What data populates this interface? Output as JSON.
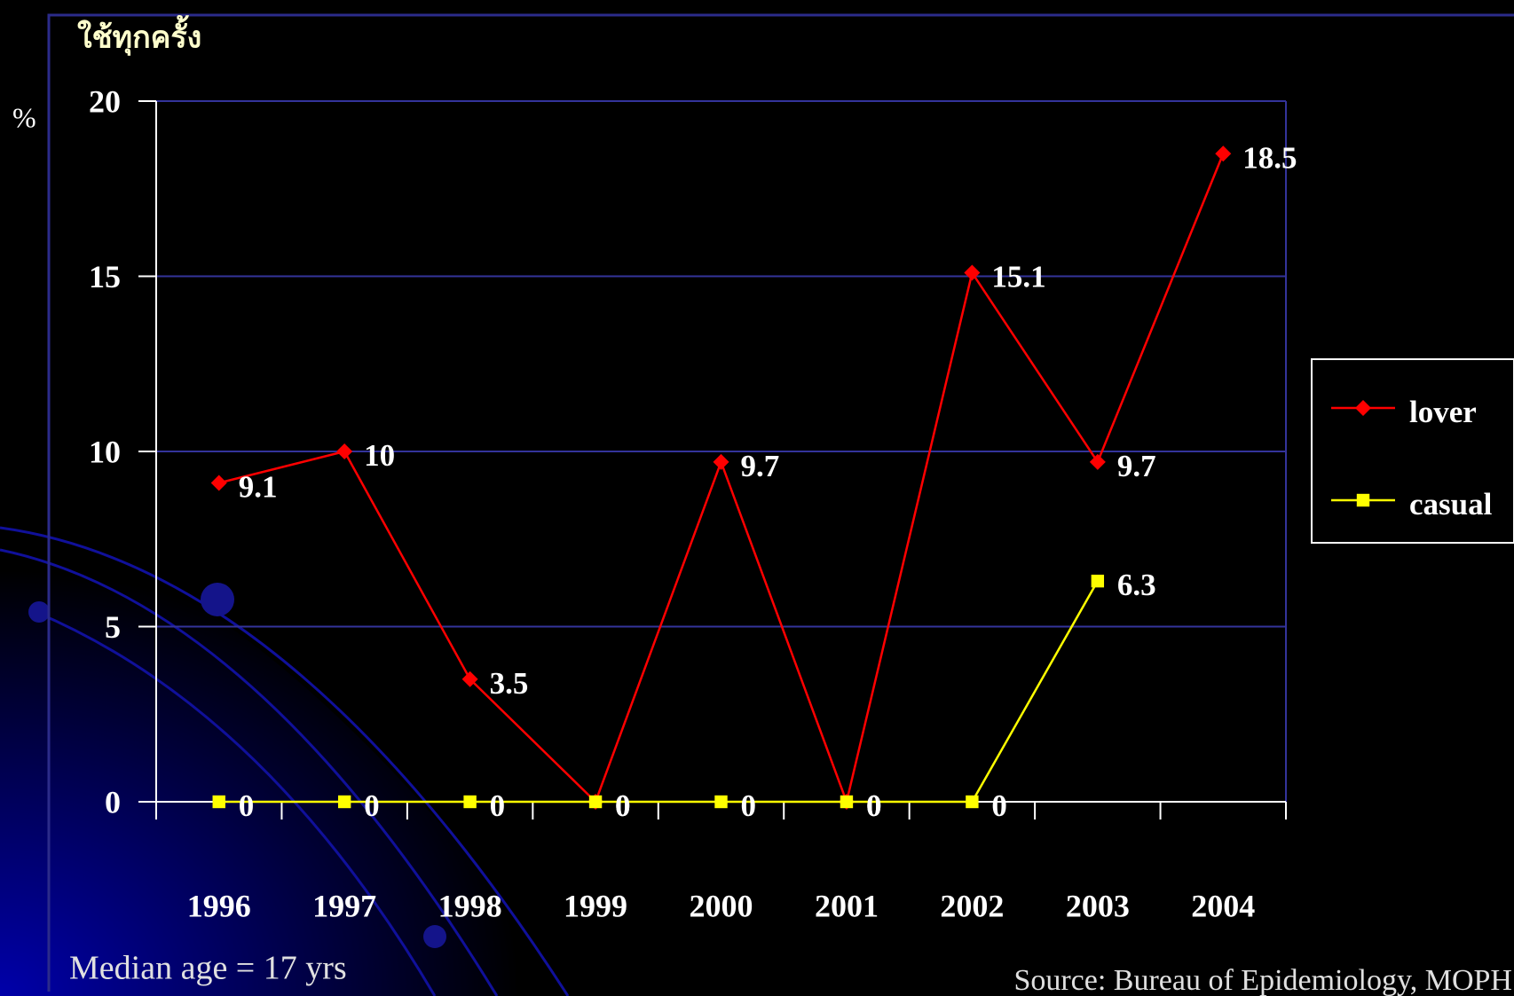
{
  "chart_data": {
    "type": "line",
    "title": "ใช้ทุกครั้ง",
    "y_label": "%",
    "categories": [
      "1996",
      "1997",
      "1998",
      "1999",
      "2000",
      "2001",
      "2002",
      "2003",
      "2004"
    ],
    "series": [
      {
        "name": "lover",
        "color": "#ff0000",
        "marker": "diamond",
        "values": [
          9.1,
          10,
          3.5,
          0,
          9.7,
          0,
          15.1,
          9.7,
          18.5
        ]
      },
      {
        "name": "casual",
        "color": "#ffff00",
        "marker": "square",
        "values": [
          0,
          0,
          0,
          0,
          0,
          0,
          0,
          6.3,
          null
        ]
      }
    ],
    "ylim": [
      0,
      20
    ],
    "yticks": [
      0,
      5,
      10,
      15,
      20
    ],
    "grid": true,
    "legend": "right",
    "notes": [
      "Median age = 17 yrs",
      "Source: Bureau of Epidemiology, MOPH"
    ]
  }
}
